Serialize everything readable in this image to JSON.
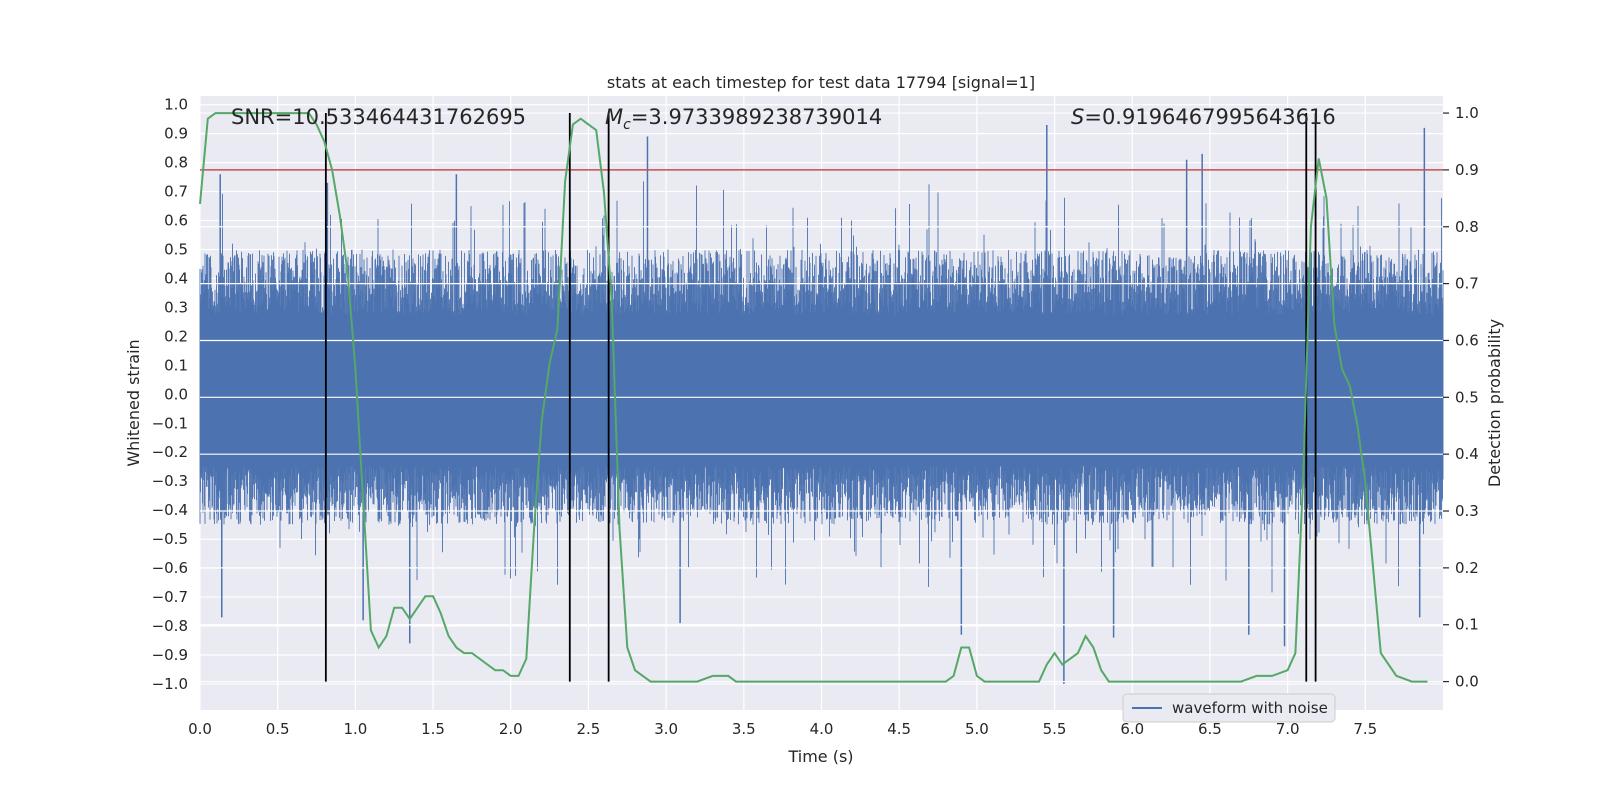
{
  "colors": {
    "waveform": "#4c72b0",
    "probability": "#55a868",
    "threshold": "#c44e52",
    "marker": "#000000",
    "plot_bg": "#eaeaf2",
    "grid": "#ffffff"
  },
  "chart_data": {
    "type": "line",
    "title": "stats at each timestep for test data 17794 [signal=1]",
    "xlabel": "Time (s)",
    "ylabel_left": "Whitened strain",
    "ylabel_right": "Detection probability",
    "xlim": [
      0.0,
      8.0
    ],
    "ylim_left": [
      -1.09,
      1.03
    ],
    "ylim_right": [
      -0.05,
      1.03
    ],
    "xticks": [
      0.0,
      0.5,
      1.0,
      1.5,
      2.0,
      2.5,
      3.0,
      3.5,
      4.0,
      4.5,
      5.0,
      5.5,
      6.0,
      6.5,
      7.0,
      7.5
    ],
    "xtick_labels": [
      "0.0",
      "0.5",
      "1.0",
      "1.5",
      "2.0",
      "2.5",
      "3.0",
      "3.5",
      "4.0",
      "4.5",
      "5.0",
      "5.5",
      "6.0",
      "6.5",
      "7.0",
      "7.5"
    ],
    "yticks_left": [
      1.0,
      0.9,
      0.8,
      0.7,
      0.6,
      0.5,
      0.4,
      0.3,
      0.2,
      0.1,
      0.0,
      -0.1,
      -0.2,
      -0.3,
      -0.4,
      -0.5,
      -0.6,
      -0.7,
      -0.8,
      -0.9,
      -1.0
    ],
    "ytick_labels_left": [
      "1.0",
      "0.9",
      "0.8",
      "0.7",
      "0.6",
      "0.5",
      "0.4",
      "0.3",
      "0.2",
      "0.1",
      "0.0",
      "−0.1",
      "−0.2",
      "−0.3",
      "−0.4",
      "−0.5",
      "−0.6",
      "−0.7",
      "−0.8",
      "−0.9",
      "−1.0"
    ],
    "yticks_right": [
      1.0,
      0.9,
      0.8,
      0.7,
      0.6,
      0.5,
      0.4,
      0.3,
      0.2,
      0.1,
      0.0
    ],
    "ytick_labels_right": [
      "1.0",
      "0.9",
      "0.8",
      "0.7",
      "0.6",
      "0.5",
      "0.4",
      "0.3",
      "0.2",
      "0.1",
      "0.0"
    ],
    "grid": true,
    "legend": {
      "label": "waveform with noise",
      "placement": "lower-right"
    },
    "annotations": {
      "snr": "SNR=10.533464431762695",
      "mc_symbol": "M",
      "mc_sub": "c",
      "mc_value": "=3.9733989238739014",
      "s_symbol": "S",
      "s_value": "=0.9196467995643616"
    },
    "threshold_probability": 0.9,
    "marker_lines_time": [
      0.81,
      2.38,
      2.63,
      7.12,
      7.18
    ],
    "waveform": {
      "name": "waveform with noise",
      "typical_range": [
        -0.45,
        0.5
      ],
      "peaks_positive": [
        [
          0.13,
          0.76
        ],
        [
          0.82,
          0.73
        ],
        [
          1.65,
          0.76
        ],
        [
          2.63,
          0.87
        ],
        [
          2.88,
          0.89
        ],
        [
          5.45,
          0.93
        ],
        [
          6.35,
          0.81
        ],
        [
          6.45,
          0.83
        ],
        [
          7.18,
          0.77
        ],
        [
          7.88,
          0.92
        ]
      ],
      "peaks_negative": [
        [
          0.14,
          -0.77
        ],
        [
          1.05,
          -0.78
        ],
        [
          1.35,
          -0.86
        ],
        [
          3.09,
          -0.79
        ],
        [
          4.9,
          -0.83
        ],
        [
          5.56,
          -1.0
        ],
        [
          5.88,
          -0.84
        ],
        [
          6.75,
          -0.83
        ],
        [
          6.98,
          -0.87
        ],
        [
          7.85,
          -0.77
        ]
      ]
    },
    "series": [
      {
        "name": "detection probability",
        "x": [
          0.0,
          0.05,
          0.1,
          0.2,
          0.3,
          0.4,
          0.5,
          0.6,
          0.7,
          0.75,
          0.8,
          0.85,
          0.9,
          0.95,
          1.0,
          1.05,
          1.1,
          1.15,
          1.2,
          1.25,
          1.3,
          1.35,
          1.4,
          1.45,
          1.5,
          1.55,
          1.6,
          1.65,
          1.7,
          1.75,
          1.8,
          1.85,
          1.9,
          1.95,
          2.0,
          2.05,
          2.1,
          2.15,
          2.2,
          2.25,
          2.3,
          2.35,
          2.4,
          2.45,
          2.5,
          2.55,
          2.6,
          2.65,
          2.7,
          2.75,
          2.8,
          2.85,
          2.9,
          2.95,
          3.0,
          3.1,
          3.2,
          3.3,
          3.4,
          3.45,
          3.5,
          3.6,
          3.7,
          3.8,
          3.9,
          4.0,
          4.1,
          4.2,
          4.3,
          4.4,
          4.5,
          4.6,
          4.7,
          4.8,
          4.85,
          4.9,
          4.95,
          5.0,
          5.05,
          5.1,
          5.2,
          5.3,
          5.4,
          5.45,
          5.5,
          5.55,
          5.6,
          5.65,
          5.7,
          5.75,
          5.8,
          5.85,
          5.9,
          6.0,
          6.1,
          6.2,
          6.3,
          6.4,
          6.5,
          6.6,
          6.7,
          6.8,
          6.9,
          7.0,
          7.05,
          7.1,
          7.15,
          7.2,
          7.25,
          7.3,
          7.35,
          7.4,
          7.45,
          7.5,
          7.55,
          7.6,
          7.7,
          7.8,
          7.9
        ],
        "values": [
          0.84,
          0.99,
          1.0,
          1.0,
          1.0,
          1.0,
          1.0,
          1.0,
          1.0,
          0.98,
          0.95,
          0.9,
          0.82,
          0.72,
          0.55,
          0.32,
          0.09,
          0.06,
          0.08,
          0.13,
          0.13,
          0.11,
          0.13,
          0.15,
          0.15,
          0.12,
          0.08,
          0.06,
          0.05,
          0.05,
          0.04,
          0.03,
          0.02,
          0.02,
          0.01,
          0.01,
          0.04,
          0.27,
          0.46,
          0.56,
          0.62,
          0.88,
          0.98,
          0.99,
          0.98,
          0.97,
          0.86,
          0.67,
          0.27,
          0.06,
          0.02,
          0.01,
          0.0,
          0.0,
          0.0,
          0.0,
          0.0,
          0.01,
          0.01,
          0.0,
          0.0,
          0.0,
          0.0,
          0.0,
          0.0,
          0.0,
          0.0,
          0.0,
          0.0,
          0.0,
          0.0,
          0.0,
          0.0,
          0.0,
          0.01,
          0.06,
          0.06,
          0.01,
          0.0,
          0.0,
          0.0,
          0.0,
          0.0,
          0.03,
          0.05,
          0.03,
          0.04,
          0.05,
          0.08,
          0.06,
          0.02,
          0.0,
          0.0,
          0.0,
          0.0,
          0.0,
          0.0,
          0.0,
          0.0,
          0.0,
          0.0,
          0.01,
          0.01,
          0.02,
          0.05,
          0.36,
          0.8,
          0.92,
          0.85,
          0.63,
          0.55,
          0.52,
          0.45,
          0.35,
          0.2,
          0.05,
          0.01,
          0.0,
          0.0
        ]
      }
    ]
  }
}
